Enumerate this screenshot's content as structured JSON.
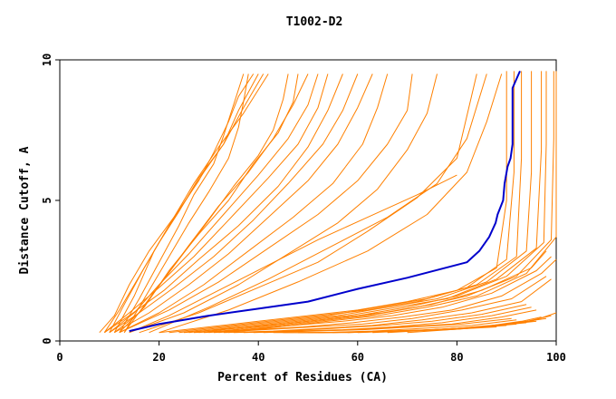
{
  "chart_data": {
    "type": "line",
    "title": "T1002-D2",
    "xlabel": "Percent of Residues (CA)",
    "ylabel": "Distance Cutoff, A",
    "xlim": [
      0,
      100
    ],
    "ylim": [
      0,
      10
    ],
    "xticks": [
      "0",
      "20",
      "40",
      "60",
      "80",
      "100"
    ],
    "yticks": [
      "0",
      "5",
      "10"
    ],
    "grid": false,
    "colors": {
      "highlight": "#0000cc",
      "others": "#ff8000"
    },
    "series": [
      {
        "highlight": true,
        "x": [
          14,
          20,
          30,
          40,
          50,
          60,
          70,
          82,
          84.5,
          86.5,
          87.8,
          88.2,
          89.3,
          89.6,
          90.2,
          90.8,
          91.2,
          91.2,
          92.7
        ],
        "y": [
          0.35,
          0.6,
          0.9,
          1.15,
          1.4,
          1.85,
          2.25,
          2.8,
          3.2,
          3.7,
          4.2,
          4.5,
          5.0,
          5.6,
          6.2,
          6.5,
          7.0,
          9.0,
          9.6
        ]
      },
      {
        "x": [
          13,
          18,
          22,
          26,
          30,
          34,
          36,
          37,
          38
        ],
        "y": [
          0.3,
          1.8,
          3.0,
          4.2,
          5.3,
          6.5,
          7.6,
          8.5,
          9.5
        ]
      },
      {
        "x": [
          12,
          16,
          20,
          24,
          27,
          31,
          33,
          35,
          37
        ],
        "y": [
          0.3,
          1.5,
          2.8,
          4.1,
          5.2,
          6.3,
          7.3,
          8.4,
          9.5
        ]
      },
      {
        "x": [
          11,
          15,
          19,
          23,
          28,
          31,
          34,
          36,
          39
        ],
        "y": [
          0.3,
          1.6,
          3.2,
          4.4,
          5.7,
          6.7,
          7.8,
          8.7,
          9.5
        ]
      },
      {
        "x": [
          10,
          13,
          17,
          21,
          25,
          29,
          33,
          36,
          40
        ],
        "y": [
          0.3,
          1.3,
          2.6,
          3.8,
          4.9,
          6.0,
          7.0,
          8.2,
          9.5
        ]
      },
      {
        "x": [
          9,
          12,
          16,
          20,
          24,
          28,
          33,
          37,
          41
        ],
        "y": [
          0.3,
          1.1,
          2.3,
          3.5,
          4.6,
          5.8,
          7.0,
          8.3,
          9.5
        ]
      },
      {
        "x": [
          8,
          11,
          14,
          18,
          23,
          27,
          32,
          37,
          42
        ],
        "y": [
          0.3,
          0.9,
          2.0,
          3.2,
          4.4,
          5.6,
          6.9,
          8.1,
          9.5
        ]
      },
      {
        "x": [
          13,
          18,
          24,
          30,
          35,
          40,
          43,
          45,
          46
        ],
        "y": [
          0.3,
          1.5,
          2.9,
          4.3,
          5.5,
          6.6,
          7.5,
          8.6,
          9.5
        ]
      },
      {
        "x": [
          12,
          17,
          22,
          28,
          34,
          39,
          44,
          47,
          48
        ],
        "y": [
          0.3,
          1.2,
          2.5,
          3.8,
          5.0,
          6.3,
          7.4,
          8.5,
          9.5
        ]
      },
      {
        "x": [
          11,
          16,
          21,
          26,
          32,
          38,
          43,
          47,
          50
        ],
        "y": [
          0.3,
          1.0,
          2.2,
          3.4,
          4.8,
          6.0,
          7.2,
          8.4,
          9.5
        ]
      },
      {
        "x": [
          10,
          15,
          20,
          26,
          33,
          40,
          46,
          50,
          52
        ],
        "y": [
          0.3,
          1.0,
          2.0,
          3.1,
          4.5,
          5.9,
          7.2,
          8.4,
          9.5
        ]
      },
      {
        "x": [
          9,
          14,
          20,
          27,
          34,
          42,
          48,
          52,
          54
        ],
        "y": [
          0.3,
          1.0,
          1.9,
          3.0,
          4.3,
          5.8,
          7.0,
          8.3,
          9.5
        ]
      },
      {
        "x": [
          9,
          14,
          21,
          28,
          36,
          44,
          50,
          54,
          57
        ],
        "y": [
          0.3,
          0.9,
          1.8,
          2.9,
          4.1,
          5.5,
          6.9,
          8.2,
          9.5
        ]
      },
      {
        "x": [
          10,
          16,
          23,
          31,
          39,
          46,
          53,
          57,
          60
        ],
        "y": [
          0.3,
          1.0,
          1.9,
          3.0,
          4.3,
          5.6,
          7.0,
          8.2,
          9.5
        ]
      },
      {
        "x": [
          11,
          18,
          26,
          34,
          42,
          50,
          56,
          60,
          63
        ],
        "y": [
          0.3,
          1.0,
          2.0,
          3.1,
          4.4,
          5.7,
          7.0,
          8.3,
          9.5
        ]
      },
      {
        "x": [
          12,
          20,
          29,
          38,
          47,
          55,
          61,
          64,
          66
        ],
        "y": [
          0.3,
          1.0,
          2.0,
          3.2,
          4.4,
          5.6,
          7.0,
          8.3,
          9.5
        ]
      },
      {
        "x": [
          12,
          22,
          32,
          42,
          52,
          60,
          66,
          70,
          71
        ],
        "y": [
          0.3,
          1.1,
          2.1,
          3.3,
          4.5,
          5.7,
          7.0,
          8.2,
          9.5
        ]
      },
      {
        "x": [
          14,
          25,
          36,
          46,
          56,
          64,
          70,
          74,
          76
        ],
        "y": [
          0.3,
          1.0,
          2.0,
          3.1,
          4.2,
          5.4,
          6.8,
          8.1,
          9.5
        ]
      },
      {
        "x": [
          14,
          22,
          32,
          42,
          52,
          62,
          72,
          80
        ],
        "y": [
          0.3,
          0.9,
          1.8,
          2.7,
          3.6,
          4.4,
          5.2,
          5.9
        ]
      },
      {
        "x": [
          16,
          28,
          40,
          52,
          62,
          72,
          80,
          84
        ],
        "y": [
          0.3,
          1.0,
          1.9,
          2.8,
          3.9,
          5.1,
          6.5,
          9.5
        ]
      },
      {
        "x": [
          18,
          30,
          42,
          54,
          66,
          76,
          82,
          86
        ],
        "y": [
          0.3,
          1.2,
          2.2,
          3.3,
          4.4,
          5.6,
          7.2,
          9.5
        ]
      },
      {
        "x": [
          20,
          34,
          48,
          62,
          74,
          82,
          86,
          89
        ],
        "y": [
          0.3,
          1.1,
          2.1,
          3.2,
          4.5,
          6.0,
          7.8,
          9.5
        ]
      },
      {
        "x": [
          20,
          30,
          40,
          50,
          60,
          70,
          80,
          88,
          90,
          90
        ],
        "y": [
          0.3,
          0.5,
          0.7,
          0.9,
          1.1,
          1.4,
          1.8,
          2.6,
          5.0,
          9.6
        ]
      },
      {
        "x": [
          22,
          32,
          42,
          52,
          62,
          72,
          82,
          90,
          91.5,
          91.5
        ],
        "y": [
          0.3,
          0.5,
          0.7,
          0.9,
          1.1,
          1.4,
          1.9,
          2.9,
          6.0,
          9.6
        ]
      },
      {
        "x": [
          24,
          34,
          44,
          54,
          64,
          74,
          84,
          92,
          93,
          93
        ],
        "y": [
          0.3,
          0.5,
          0.7,
          0.9,
          1.2,
          1.5,
          2.0,
          3.0,
          6.5,
          9.6
        ]
      },
      {
        "x": [
          26,
          36,
          46,
          56,
          66,
          76,
          86,
          94,
          95,
          95
        ],
        "y": [
          0.3,
          0.5,
          0.7,
          0.9,
          1.2,
          1.5,
          2.1,
          3.2,
          6.0,
          9.6
        ]
      },
      {
        "x": [
          28,
          38,
          48,
          58,
          68,
          78,
          88,
          96,
          97,
          97
        ],
        "y": [
          0.3,
          0.5,
          0.7,
          0.9,
          1.2,
          1.5,
          2.2,
          3.3,
          6.8,
          9.6
        ]
      },
      {
        "x": [
          30,
          40,
          50,
          60,
          70,
          80,
          90,
          97.5,
          98,
          98
        ],
        "y": [
          0.3,
          0.5,
          0.7,
          0.9,
          1.2,
          1.6,
          2.3,
          3.5,
          7.0,
          9.6
        ]
      },
      {
        "x": [
          32,
          42,
          52,
          62,
          72,
          82,
          92,
          99,
          99.5,
          99.5
        ],
        "y": [
          0.3,
          0.5,
          0.7,
          0.9,
          1.2,
          1.6,
          2.3,
          3.6,
          7.2,
          9.6
        ]
      },
      {
        "x": [
          34,
          44,
          54,
          64,
          74,
          84,
          94,
          100,
          100
        ],
        "y": [
          0.3,
          0.5,
          0.7,
          0.9,
          1.2,
          1.6,
          2.4,
          3.7,
          9.6
        ]
      },
      {
        "x": [
          25,
          35,
          45,
          55,
          65,
          75,
          85,
          95,
          98
        ],
        "y": [
          0.3,
          0.45,
          0.6,
          0.8,
          1.0,
          1.3,
          1.8,
          2.6,
          3.2
        ]
      },
      {
        "x": [
          27,
          37,
          47,
          57,
          67,
          77,
          87,
          96,
          99
        ],
        "y": [
          0.3,
          0.4,
          0.55,
          0.7,
          0.9,
          1.2,
          1.7,
          2.5,
          3.0
        ]
      },
      {
        "x": [
          29,
          39,
          49,
          59,
          69,
          79,
          89,
          97,
          100
        ],
        "y": [
          0.3,
          0.4,
          0.5,
          0.65,
          0.85,
          1.1,
          1.6,
          2.4,
          2.9
        ]
      },
      {
        "x": [
          31,
          41,
          51,
          61,
          71,
          81,
          91,
          98
        ],
        "y": [
          0.3,
          0.4,
          0.5,
          0.6,
          0.8,
          1.1,
          1.5,
          2.3
        ]
      },
      {
        "x": [
          33,
          43,
          53,
          63,
          73,
          83,
          93,
          99
        ],
        "y": [
          0.3,
          0.35,
          0.45,
          0.55,
          0.75,
          1.0,
          1.4,
          2.2
        ]
      },
      {
        "x": [
          35,
          45,
          55,
          65,
          75,
          85,
          94
        ],
        "y": [
          0.3,
          0.35,
          0.45,
          0.55,
          0.7,
          0.95,
          1.3
        ]
      },
      {
        "x": [
          37,
          47,
          57,
          67,
          77,
          87,
          95
        ],
        "y": [
          0.3,
          0.35,
          0.4,
          0.5,
          0.65,
          0.9,
          1.2
        ]
      },
      {
        "x": [
          39,
          49,
          59,
          69,
          79,
          89,
          96
        ],
        "y": [
          0.3,
          0.35,
          0.4,
          0.5,
          0.6,
          0.85,
          1.1
        ]
      },
      {
        "x": [
          41,
          51,
          61,
          71,
          81,
          91
        ],
        "y": [
          0.3,
          0.35,
          0.4,
          0.5,
          0.6,
          0.8
        ]
      },
      {
        "x": [
          43,
          53,
          63,
          73,
          83,
          92
        ],
        "y": [
          0.3,
          0.3,
          0.35,
          0.45,
          0.55,
          0.75
        ]
      },
      {
        "x": [
          45,
          55,
          65,
          75,
          85,
          93
        ],
        "y": [
          0.3,
          0.3,
          0.35,
          0.4,
          0.5,
          0.7
        ]
      },
      {
        "x": [
          48,
          58,
          68,
          78,
          88
        ],
        "y": [
          0.3,
          0.3,
          0.35,
          0.4,
          0.5
        ]
      },
      {
        "x": [
          50,
          60,
          70,
          80,
          90
        ],
        "y": [
          0.3,
          0.32,
          0.36,
          0.42,
          0.55
        ]
      },
      {
        "x": [
          52,
          62,
          72,
          82,
          92
        ],
        "y": [
          0.3,
          0.33,
          0.38,
          0.45,
          0.6
        ]
      },
      {
        "x": [
          55,
          65,
          75,
          85,
          94
        ],
        "y": [
          0.3,
          0.34,
          0.4,
          0.5,
          0.65
        ]
      },
      {
        "x": [
          58,
          68,
          78,
          88,
          96
        ],
        "y": [
          0.3,
          0.35,
          0.42,
          0.55,
          0.7
        ]
      },
      {
        "x": [
          60,
          70,
          80,
          90,
          98
        ],
        "y": [
          0.3,
          0.36,
          0.45,
          0.6,
          0.8
        ]
      },
      {
        "x": [
          63,
          73,
          83,
          93,
          99
        ],
        "y": [
          0.3,
          0.38,
          0.48,
          0.65,
          0.9
        ]
      },
      {
        "x": [
          66,
          76,
          86,
          95,
          100
        ],
        "y": [
          0.3,
          0.4,
          0.52,
          0.7,
          1.0
        ]
      },
      {
        "x": [
          70,
          80,
          90,
          97
        ],
        "y": [
          0.3,
          0.42,
          0.58,
          0.85
        ]
      }
    ]
  }
}
